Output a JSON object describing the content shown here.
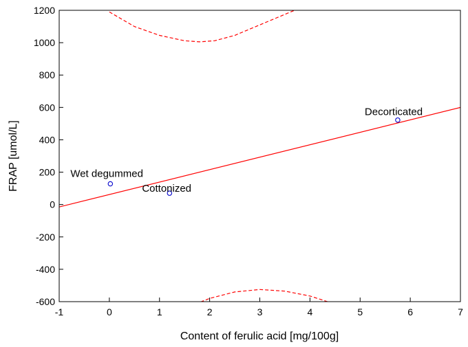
{
  "chart_data": {
    "type": "scatter",
    "xlabel": "Content of ferulic acid [mg/100g]",
    "ylabel": "FRAP [umol/L]",
    "xlim": [
      -1,
      7
    ],
    "ylim": [
      -600,
      1200
    ],
    "x_ticks": [
      -1,
      0,
      1,
      2,
      3,
      4,
      5,
      6,
      7
    ],
    "y_ticks": [
      -600,
      -400,
      -200,
      0,
      200,
      400,
      600,
      800,
      1000,
      1200
    ],
    "grid": false,
    "points": [
      {
        "label": "Wet degummed",
        "x": 0.02,
        "y": 128
      },
      {
        "label": "Cottonized",
        "x": 1.2,
        "y": 70
      },
      {
        "label": "Decorticated",
        "x": 5.75,
        "y": 522
      }
    ],
    "fit_line": {
      "x": [
        -1,
        7
      ],
      "y": [
        -15,
        600
      ]
    },
    "confidence_upper": {
      "x": [
        0.0,
        0.5,
        1.0,
        1.5,
        1.8,
        2.1,
        2.5,
        3.0,
        3.5,
        4.0,
        4.5
      ],
      "y": [
        1190,
        1100,
        1045,
        1012,
        1005,
        1012,
        1045,
        1110,
        1175,
        1240,
        1300
      ]
    },
    "confidence_lower": {
      "x": [
        1.0,
        1.5,
        2.0,
        2.5,
        3.0,
        3.5,
        4.0,
        4.5,
        5.0
      ],
      "y": [
        -700,
        -640,
        -580,
        -540,
        -525,
        -535,
        -565,
        -615,
        -690
      ]
    },
    "colors": {
      "fit": "#ff0000",
      "points": "#0000cc",
      "axis": "#000000"
    }
  }
}
